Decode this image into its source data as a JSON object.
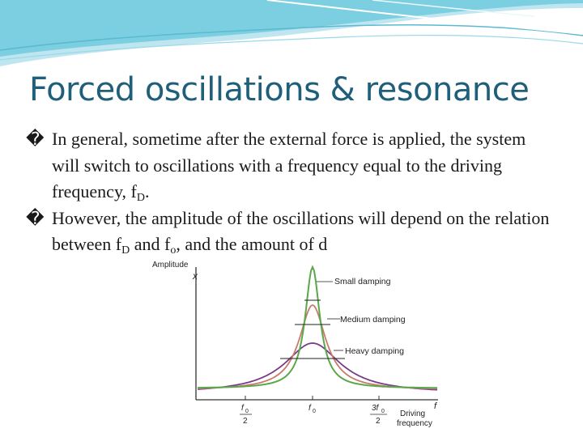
{
  "slide": {
    "title": "Forced oscillations & resonance",
    "bullet_glyph": "�",
    "bullets": [
      {
        "part1": "In general, sometime after the external force is applied, the system will switch to oscillations with a frequency equal to the driving frequency, f",
        "sub1": "D",
        "part2": "."
      },
      {
        "part1": "However, the amplitude of the oscillations will depend on the relation between f",
        "sub1": "D",
        "part2": " and f",
        "sub2": "o",
        "part3": ", and the amount of d"
      }
    ]
  },
  "figure": {
    "y_label_1": "Amplitude",
    "y_label_2": "x",
    "x_label_1": "Driving",
    "x_label_2": "frequency",
    "x_axis_letter": "f",
    "ticks": [
      {
        "num": "f",
        "num_sub": "0",
        "den": "2"
      },
      {
        "num": "f",
        "num_sub": "0",
        "den": ""
      },
      {
        "num": "3f",
        "num_sub": "0",
        "den": "2"
      }
    ],
    "curve_labels": [
      "Small damping",
      "Medium damping",
      "Heavy damping"
    ],
    "colors": {
      "small": "#5aa84a",
      "medium": "#c97a6a",
      "heavy": "#7a3a8a",
      "accent": "#1f5f7a"
    }
  }
}
